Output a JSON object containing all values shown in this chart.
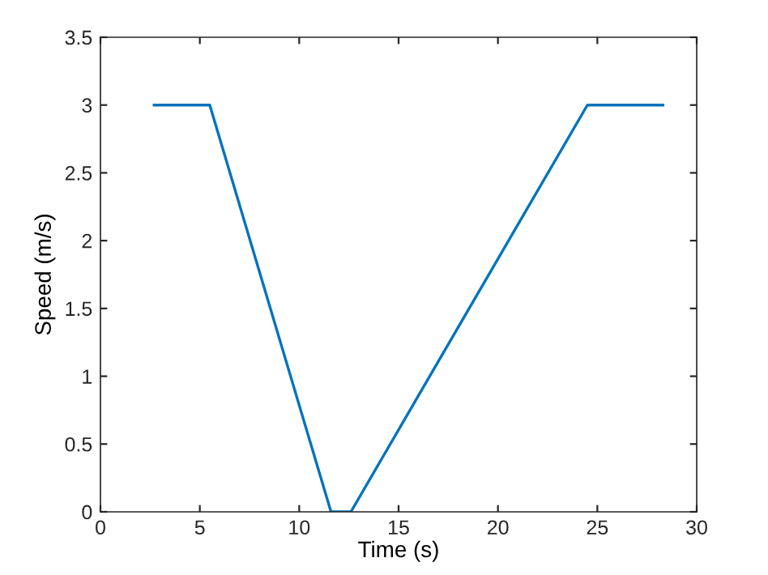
{
  "chart_data": {
    "type": "line",
    "xlabel": "Time (s)",
    "ylabel": "Speed (m/s)",
    "x": [
      2.7,
      5.5,
      11.6,
      12.6,
      24.5,
      28.3
    ],
    "series": [
      {
        "color": "#0072bd",
        "values": [
          3,
          3,
          0,
          0,
          3,
          3
        ]
      }
    ],
    "xlim": [
      0,
      30
    ],
    "xticks": [
      0,
      5,
      10,
      15,
      20,
      25,
      30
    ],
    "ylim": [
      0,
      3.5
    ],
    "yticks": [
      0,
      0.5,
      1,
      1.5,
      2,
      2.5,
      3,
      3.5
    ],
    "grid": false
  }
}
